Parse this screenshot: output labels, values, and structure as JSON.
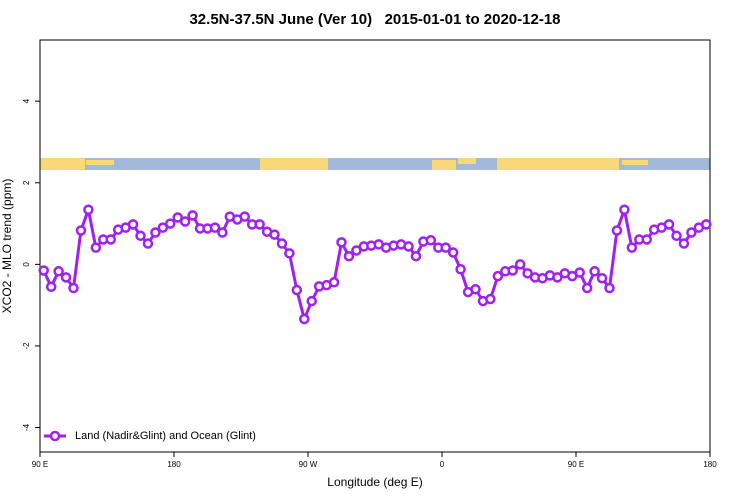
{
  "chart_data": {
    "type": "line",
    "title": "32.5N-37.5N June (Ver 10)   2015-01-01 to 2020-12-18",
    "xlabel": "Longitude (deg E)",
    "ylabel": "XCO2 - MLO trend (ppm)",
    "xlim": [
      90,
      540
    ],
    "ylim": [
      -4.6,
      5.5
    ],
    "xticks": [
      {
        "value": 90,
        "label": "90 E"
      },
      180,
      {
        "value": 270,
        "label": "90 W"
      },
      {
        "value": 360,
        "label": "0"
      },
      {
        "value": 450,
        "label": "90 E"
      },
      {
        "value": 540,
        "label": "180"
      }
    ],
    "yticks": [
      -4,
      -2,
      0,
      2,
      4
    ],
    "legend": "bottom-left",
    "x": [
      92.5,
      97.5,
      102.5,
      107.5,
      112.5,
      117.5,
      122.5,
      127.5,
      132.5,
      137.5,
      142.5,
      147.5,
      152.5,
      157.5,
      162.5,
      167.5,
      172.5,
      177.5,
      182.5,
      187.5,
      192.5,
      197.5,
      202.5,
      207.5,
      212.5,
      217.5,
      222.5,
      227.5,
      232.5,
      237.5,
      242.5,
      247.5,
      252.5,
      257.5,
      262.5,
      267.5,
      272.5,
      277.5,
      282.5,
      287.5,
      292.5,
      297.5,
      302.5,
      307.5,
      312.5,
      317.5,
      322.5,
      327.5,
      332.5,
      337.5,
      342.5,
      347.5,
      352.5,
      357.5,
      362.5,
      367.5,
      372.5,
      377.5,
      382.5,
      387.5,
      392.5,
      397.5,
      402.5,
      407.5,
      412.5,
      417.5,
      422.5,
      427.5,
      432.5,
      437.5,
      442.5,
      447.5,
      452.5,
      457.5,
      462.5,
      467.5,
      472.5,
      477.5,
      482.5,
      487.5,
      492.5,
      497.5,
      502.5,
      507.5,
      512.5,
      517.5,
      522.5,
      527.5,
      532.5,
      537.5
    ],
    "series": [
      {
        "name": "Land (Nadir&Glint) and Ocean (Glint)",
        "color": "#a020f0",
        "values": [
          -0.15,
          -0.55,
          -0.17,
          -0.32,
          -0.58,
          0.83,
          1.34,
          0.41,
          0.61,
          0.61,
          0.85,
          0.9,
          0.98,
          0.7,
          0.51,
          0.78,
          0.9,
          1.0,
          1.15,
          1.05,
          1.2,
          0.88,
          0.88,
          0.9,
          0.78,
          1.17,
          1.1,
          1.17,
          0.98,
          0.98,
          0.8,
          0.73,
          0.51,
          0.27,
          -0.63,
          -1.34,
          -0.9,
          -0.54,
          -0.51,
          -0.44,
          0.54,
          0.2,
          0.34,
          0.44,
          0.46,
          0.49,
          0.41,
          0.46,
          0.49,
          0.44,
          0.2,
          0.56,
          0.59,
          0.41,
          0.41,
          0.29,
          -0.12,
          -0.68,
          -0.61,
          -0.9,
          -0.85,
          -0.29,
          -0.17,
          -0.15,
          0.0,
          -0.22,
          -0.32,
          -0.34,
          -0.27,
          -0.32,
          -0.22,
          -0.29,
          -0.2,
          -0.58,
          -0.17,
          -0.34,
          -0.58,
          0.83,
          1.34,
          0.41,
          0.61,
          0.61,
          0.85,
          0.9,
          0.98,
          0.7,
          0.51,
          0.78,
          0.9,
          0.98
        ]
      }
    ]
  }
}
